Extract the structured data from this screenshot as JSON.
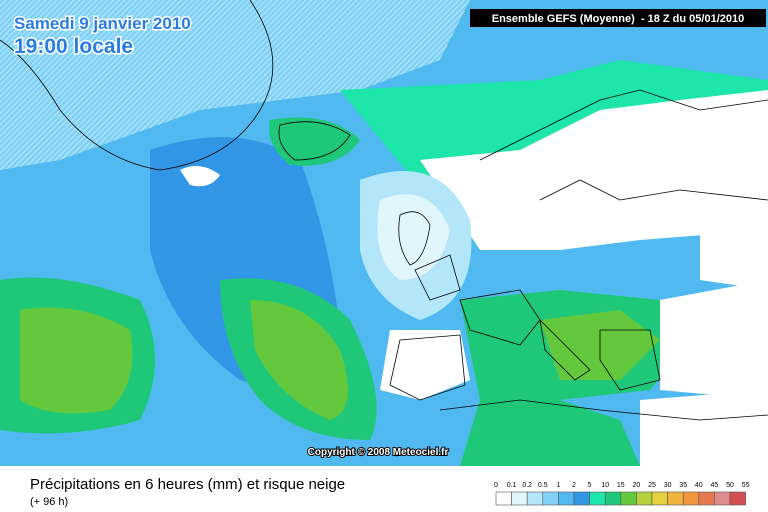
{
  "header": {
    "date": "Samedi 9 janvier 2010",
    "time": "19:00 locale",
    "model": "Ensemble GEFS (Moyenne)  - 18 Z du 05/01/2010"
  },
  "copyright": "Copyright © 2008 Meteociel.fr",
  "footer": {
    "title": "Précipitations en 6 heures (mm) et risque neige",
    "lead": "(+ 96 h)"
  },
  "legend": {
    "labels": [
      "0",
      "0.1",
      "0.2",
      "0.5",
      "1",
      "2",
      "5",
      "10",
      "15",
      "20",
      "25",
      "30",
      "35",
      "40",
      "45",
      "50",
      "55"
    ],
    "colors": [
      "#ffffff",
      "#e1f5fc",
      "#b4e6fa",
      "#82d2f5",
      "#50b9f0",
      "#3296e6",
      "#1ee6aa",
      "#1ec878",
      "#64c83c",
      "#b4d23c",
      "#e6d23c",
      "#f0b43c",
      "#f0963c",
      "#e67850",
      "#e08c8c",
      "#d25050"
    ]
  }
}
